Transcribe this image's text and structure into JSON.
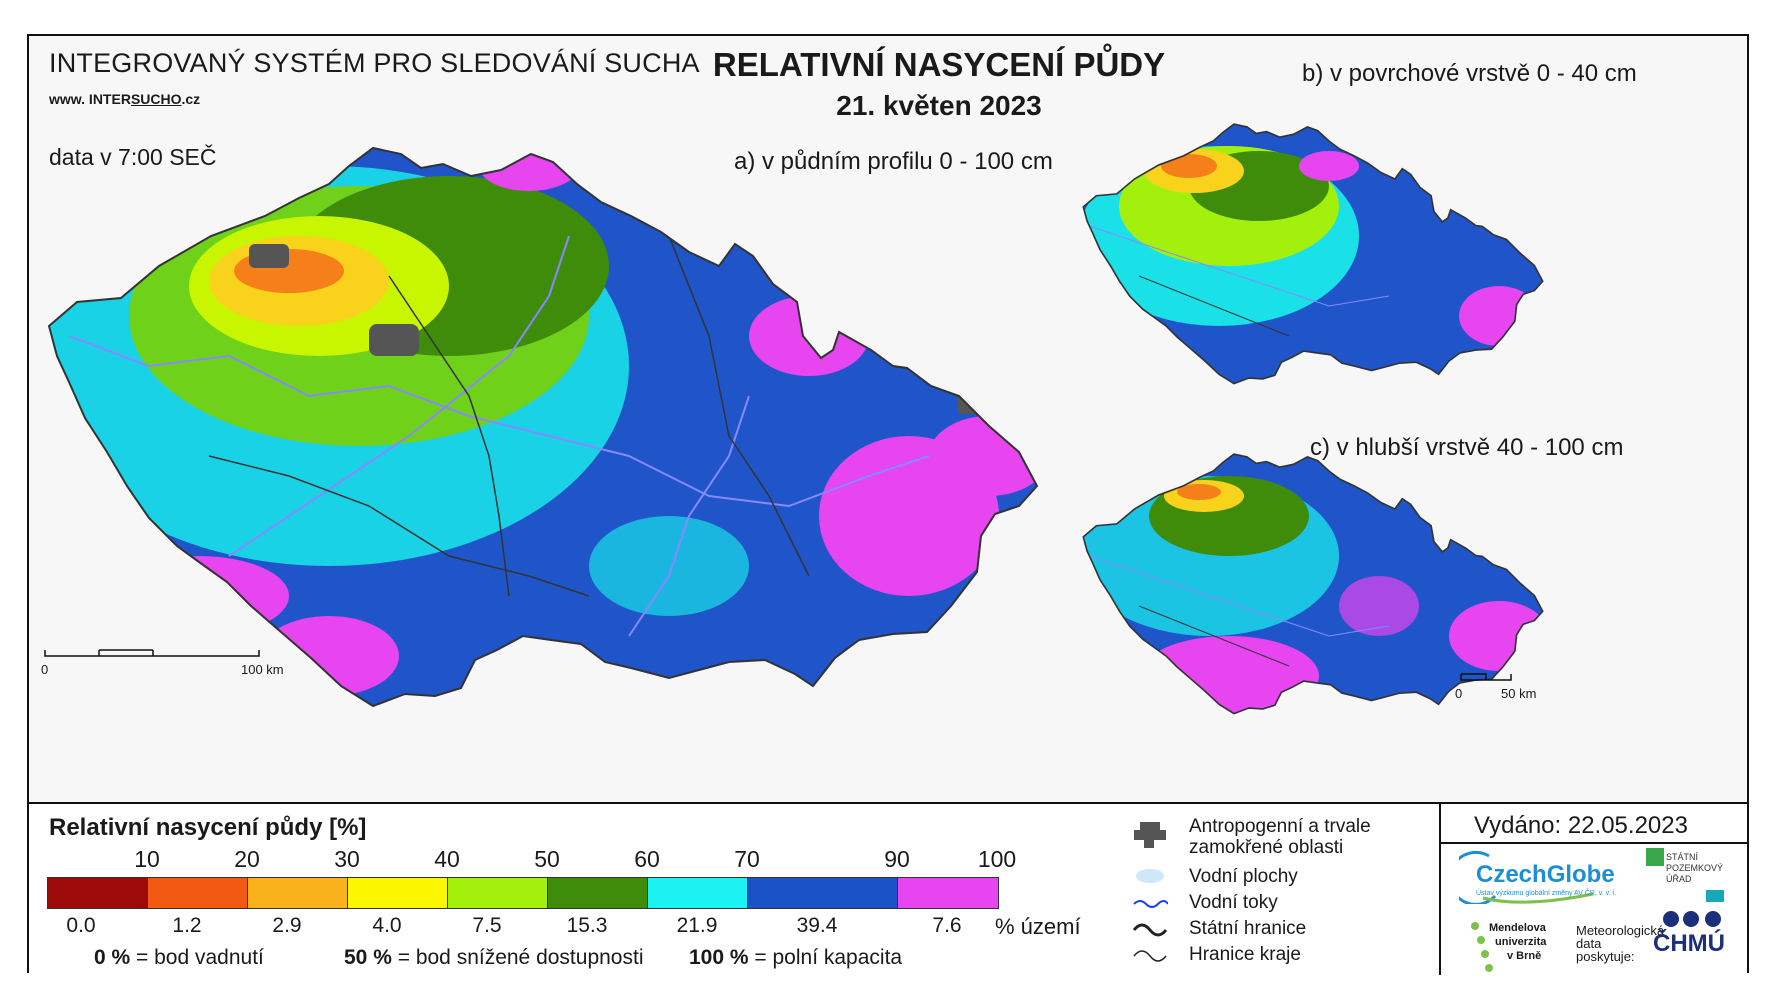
{
  "header": {
    "system_name": "INTEGROVANÝ SYSTÉM PRO SLEDOVÁNÍ SUCHA",
    "website_prefix": "www. INTER",
    "website_mid": "SUCHO",
    "website_suffix": ".cz",
    "data_time": "data v 7:00 SEČ",
    "title": "RELATIVNÍ NASYCENÍ PŮDY",
    "date": "21. květen 2023"
  },
  "maps": {
    "a_label": "a) v půdním profilu 0 - 100 cm",
    "b_label": "b) v povrchové vrstvě 0 - 40 cm",
    "c_label": "c) v hlubší vrstvě 40 - 100 cm",
    "scale_main": {
      "zero": "0",
      "end": "100 km"
    },
    "scale_small": {
      "zero": "0",
      "end": "50 km"
    }
  },
  "legend": {
    "title": "Relativní nasycení půdy [%]",
    "ticks": [
      "10",
      "20",
      "30",
      "40",
      "50",
      "60",
      "70",
      "90",
      "100"
    ],
    "colors": [
      "#9c0a0a",
      "#f25a13",
      "#f9b21c",
      "#fbf700",
      "#a4f00d",
      "#3e8c0a",
      "#1df2f2",
      "#1a52c8",
      "#e645f0"
    ],
    "percentages": [
      "0.0",
      "1.2",
      "2.9",
      "4.0",
      "7.5",
      "15.3",
      "21.9",
      "39.4",
      "7.6"
    ],
    "percent_unit": "% území",
    "note_0_value": "0 %",
    "note_0_text": "= bod vadnutí",
    "note_50_value": "50 %",
    "note_50_text": "= bod snížené dostupnosti",
    "note_100_value": "100 %",
    "note_100_text": "= polní kapacita"
  },
  "legend2": {
    "anthropogenic_line1": "Antropogenní a trvale",
    "anthropogenic_line2": "zamokřené oblasti",
    "water_bodies": "Vodní plochy",
    "rivers": "Vodní toky",
    "state_border": "Státní hranice",
    "region_border": "Hranice kraje"
  },
  "footer": {
    "issued": "Vydáno: 22.05.2023",
    "czechglobe": "CzechGlobe",
    "czechglobe_sub": "Ústav výzkumu globální změny AV ČR, v. v. i.",
    "spu_line1": "STÁTNÍ",
    "spu_line2": "POZEMKOVÝ",
    "spu_line3": "ÚŘAD",
    "mendel_line1": "Mendelova",
    "mendel_line2": "univerzita",
    "mendel_line3": "v Brně",
    "meteo_line1": "Meteorologická",
    "meteo_line2": "data",
    "meteo_line3": "poskytuje:",
    "chmu": "ČHMÚ"
  }
}
